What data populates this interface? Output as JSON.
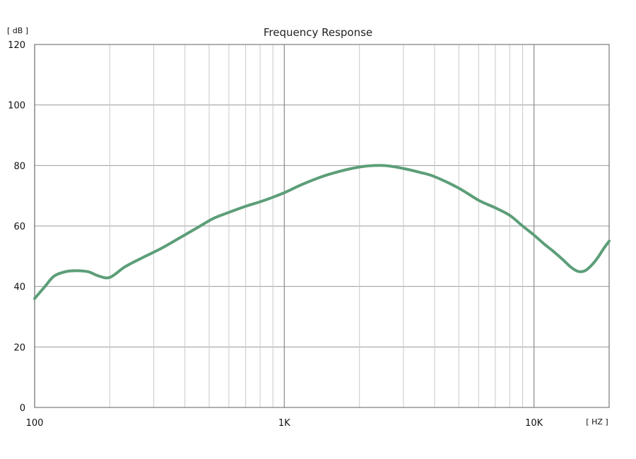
{
  "chart_data": {
    "type": "line",
    "title": "Frequency Response",
    "ylabel": "[ dB ]",
    "xlabel": "[ HZ ]",
    "x_scale": "log",
    "xlim": [
      100,
      20000
    ],
    "ylim": [
      0,
      120
    ],
    "y_ticks": [
      0,
      20,
      40,
      60,
      80,
      100,
      120
    ],
    "y_tick_labels": [
      "0",
      "20",
      "40",
      "60",
      "80",
      "100",
      "120"
    ],
    "x_ticks": [
      100,
      1000,
      10000
    ],
    "x_tick_labels": [
      "100",
      "1K",
      "10K"
    ],
    "grid": true,
    "line_color": "#5c9e78",
    "series": [
      {
        "x": [
          100,
          110,
          120,
          135,
          150,
          165,
          180,
          200,
          230,
          270,
          320,
          380,
          450,
          520,
          600,
          700,
          800,
          900,
          1000,
          1200,
          1500,
          2000,
          2500,
          3000,
          3500,
          4000,
          5000,
          6000,
          7000,
          8000,
          9000,
          10000,
          11000,
          12000,
          13000,
          14000,
          15000,
          16000,
          17000,
          18000,
          19000,
          20000
        ],
        "y": [
          36,
          40,
          43.5,
          45,
          45.2,
          44.8,
          43.5,
          43,
          46.5,
          49.5,
          52.5,
          56,
          59.5,
          62.5,
          64.5,
          66.5,
          68,
          69.5,
          71,
          74,
          77,
          79.5,
          80,
          79,
          77.7,
          76.3,
          72.5,
          68.5,
          66,
          63.5,
          60,
          57,
          54,
          51.5,
          49,
          46.5,
          45,
          45.2,
          47,
          49.5,
          52.5,
          55
        ]
      }
    ]
  }
}
